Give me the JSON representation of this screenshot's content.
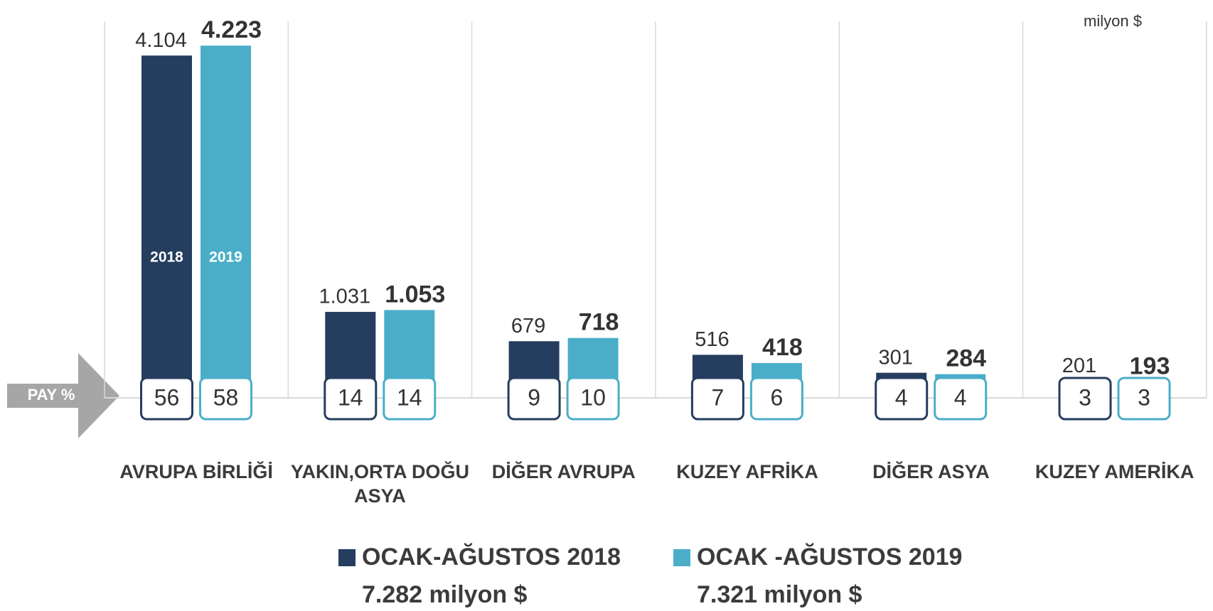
{
  "chart_data": {
    "type": "bar",
    "unit_label": "milyon $",
    "share_label": "PAY %",
    "categories": [
      "AVRUPA BİRLİĞİ",
      "YAKIN,ORTA DOĞU ASYA",
      "DİĞER AVRUPA",
      "KUZEY AFRİKA",
      "DİĞER ASYA",
      "KUZEY AMERİKA"
    ],
    "series": [
      {
        "name": "OCAK-AĞUSTOS 2018",
        "total_label": "7.282 milyon $",
        "inner_label": "2018",
        "color": "#253d5e",
        "values": [
          4104,
          1031,
          679,
          516,
          301,
          201
        ],
        "value_labels": [
          "4.104",
          "1.031",
          "679",
          "516",
          "301",
          "201"
        ],
        "shares": [
          56,
          14,
          9,
          7,
          4,
          3
        ]
      },
      {
        "name": "OCAK -AĞUSTOS 2019",
        "total_label": "7.321 milyon $",
        "inner_label": "2019",
        "color": "#4aaec8",
        "values": [
          4223,
          1053,
          718,
          418,
          284,
          193
        ],
        "value_labels": [
          "4.223",
          "1.053",
          "718",
          "418",
          "284",
          "193"
        ],
        "shares": [
          58,
          14,
          10,
          6,
          4,
          3
        ]
      }
    ],
    "ylim": [
      0,
      4770
    ]
  }
}
